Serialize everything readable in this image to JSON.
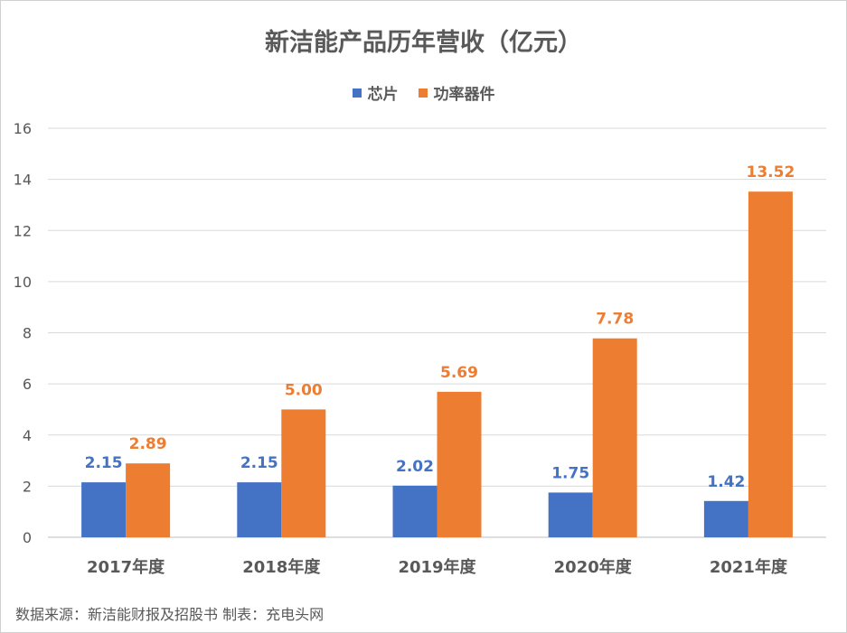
{
  "chart_data": {
    "type": "bar",
    "title": "新洁能产品历年营收（亿元）",
    "categories": [
      "2017年度",
      "2018年度",
      "2019年度",
      "2020年度",
      "2021年度"
    ],
    "series": [
      {
        "name": "芯片",
        "color": "#4472c4",
        "values": [
          2.15,
          2.15,
          2.02,
          1.75,
          1.42
        ]
      },
      {
        "name": "功率器件",
        "color": "#ed7d31",
        "values": [
          2.89,
          5.0,
          5.69,
          7.78,
          13.52
        ]
      }
    ],
    "ylim": [
      0,
      16
    ],
    "yticks": [
      "0",
      "2",
      "4",
      "6",
      "8",
      "10",
      "12",
      "14",
      "16"
    ],
    "grid": true,
    "legend_position": "top",
    "data_labels": [
      [
        "2.15",
        "2.15",
        "2.02",
        "1.75",
        "1.42"
      ],
      [
        "2.89",
        "5.00",
        "5.69",
        "7.78",
        "13.52"
      ]
    ]
  },
  "source_note": "数据来源：新洁能财报及招股书  制表：充电头网"
}
